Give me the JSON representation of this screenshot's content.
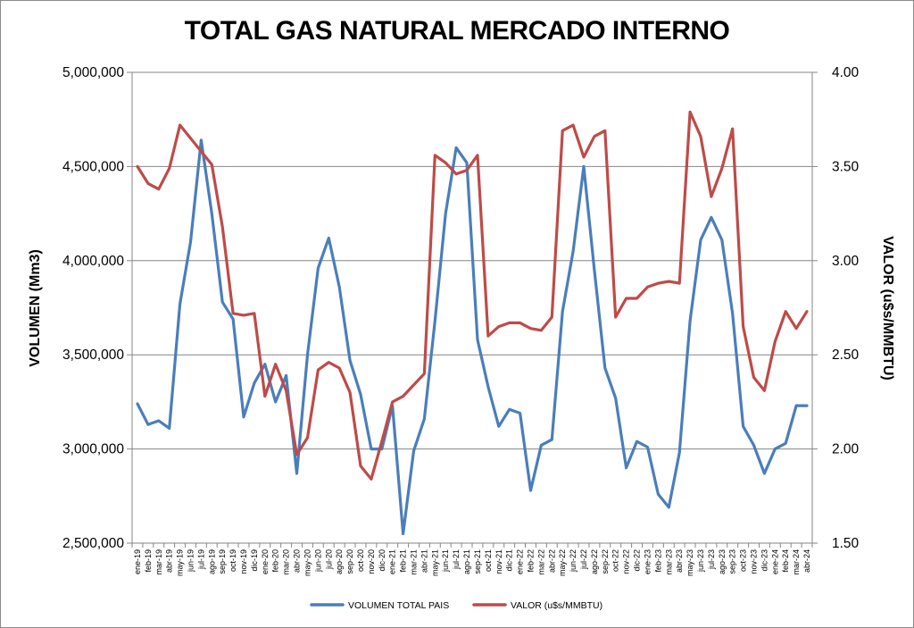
{
  "chart_data": {
    "type": "line",
    "title": "TOTAL GAS NATURAL MERCADO INTERNO",
    "ylabel": "VOLUMEN (Mm3)",
    "y2label": "VALOR (u$s/MMBTU)",
    "ylim": [
      2500000,
      5000000
    ],
    "y2lim": [
      1.5,
      4.0
    ],
    "yticks": [
      "2,500,000",
      "3,000,000",
      "3,500,000",
      "4,000,000",
      "4,500,000",
      "5,000,000"
    ],
    "y2ticks": [
      "1.50",
      "2.00",
      "2.50",
      "3.00",
      "3.50",
      "4.00"
    ],
    "grid": true,
    "legend_position": "bottom",
    "categories": [
      "ene-19",
      "feb-19",
      "mar-19",
      "abr-19",
      "may-19",
      "jun-19",
      "jul-19",
      "ago-19",
      "sep-19",
      "oct-19",
      "nov-19",
      "dic-19",
      "ene-20",
      "feb-20",
      "mar-20",
      "abr-20",
      "may-20",
      "jun-20",
      "jul-20",
      "ago-20",
      "sep-20",
      "oct-20",
      "nov-20",
      "dic-20",
      "ene-21",
      "feb-21",
      "mar-21",
      "abr-21",
      "may-21",
      "jun-21",
      "jul-21",
      "ago-21",
      "sep-21",
      "oct-21",
      "nov-21",
      "dic-21",
      "ene-22",
      "feb-22",
      "mar-22",
      "abr-22",
      "may-22",
      "jun-22",
      "jul-22",
      "ago-22",
      "sep-22",
      "oct-22",
      "nov-22",
      "dic-22",
      "ene-23",
      "feb-23",
      "mar-23",
      "abr-23",
      "may-23",
      "jun-23",
      "jul-23",
      "ago-23",
      "sep-23",
      "oct-23",
      "nov-23",
      "dic-23",
      "ene-24",
      "feb-24",
      "mar-24",
      "abr-24"
    ],
    "series": [
      {
        "name": "VOLUMEN TOTAL PAIS",
        "axis": "left",
        "color": "#4a7ebb",
        "values": [
          3240000,
          3130000,
          3150000,
          3110000,
          3770000,
          4100000,
          4640000,
          4250000,
          3780000,
          3690000,
          3170000,
          3350000,
          3450000,
          3250000,
          3390000,
          2870000,
          3500000,
          3960000,
          4120000,
          3860000,
          3470000,
          3290000,
          3000000,
          3000000,
          3230000,
          2550000,
          2990000,
          3160000,
          3680000,
          4250000,
          4600000,
          4520000,
          3580000,
          3330000,
          3120000,
          3210000,
          3190000,
          2780000,
          3020000,
          3050000,
          3730000,
          4050000,
          4500000,
          3950000,
          3430000,
          3270000,
          2900000,
          3040000,
          3010000,
          2760000,
          2690000,
          2980000,
          3680000,
          4110000,
          4230000,
          4110000,
          3720000,
          3120000,
          3020000,
          2870000,
          3000000,
          3030000,
          3230000,
          3230000
        ]
      },
      {
        "name": "VALOR (u$s/MMBTU)",
        "axis": "right",
        "color": "#be4b48",
        "values": [
          3.5,
          3.41,
          3.38,
          3.49,
          3.72,
          3.65,
          3.58,
          3.51,
          3.18,
          2.72,
          2.71,
          2.72,
          2.28,
          2.45,
          2.31,
          1.97,
          2.06,
          2.42,
          2.46,
          2.43,
          2.3,
          1.91,
          1.84,
          2.04,
          2.25,
          2.28,
          2.34,
          2.4,
          3.56,
          3.52,
          3.46,
          3.48,
          3.56,
          2.6,
          2.65,
          2.67,
          2.67,
          2.64,
          2.63,
          2.7,
          3.69,
          3.72,
          3.55,
          3.66,
          3.69,
          2.7,
          2.8,
          2.8,
          2.86,
          2.88,
          2.89,
          2.88,
          3.79,
          3.66,
          3.34,
          3.49,
          3.7,
          2.65,
          2.38,
          2.31,
          2.57,
          2.73,
          2.64,
          2.73
        ]
      }
    ]
  }
}
